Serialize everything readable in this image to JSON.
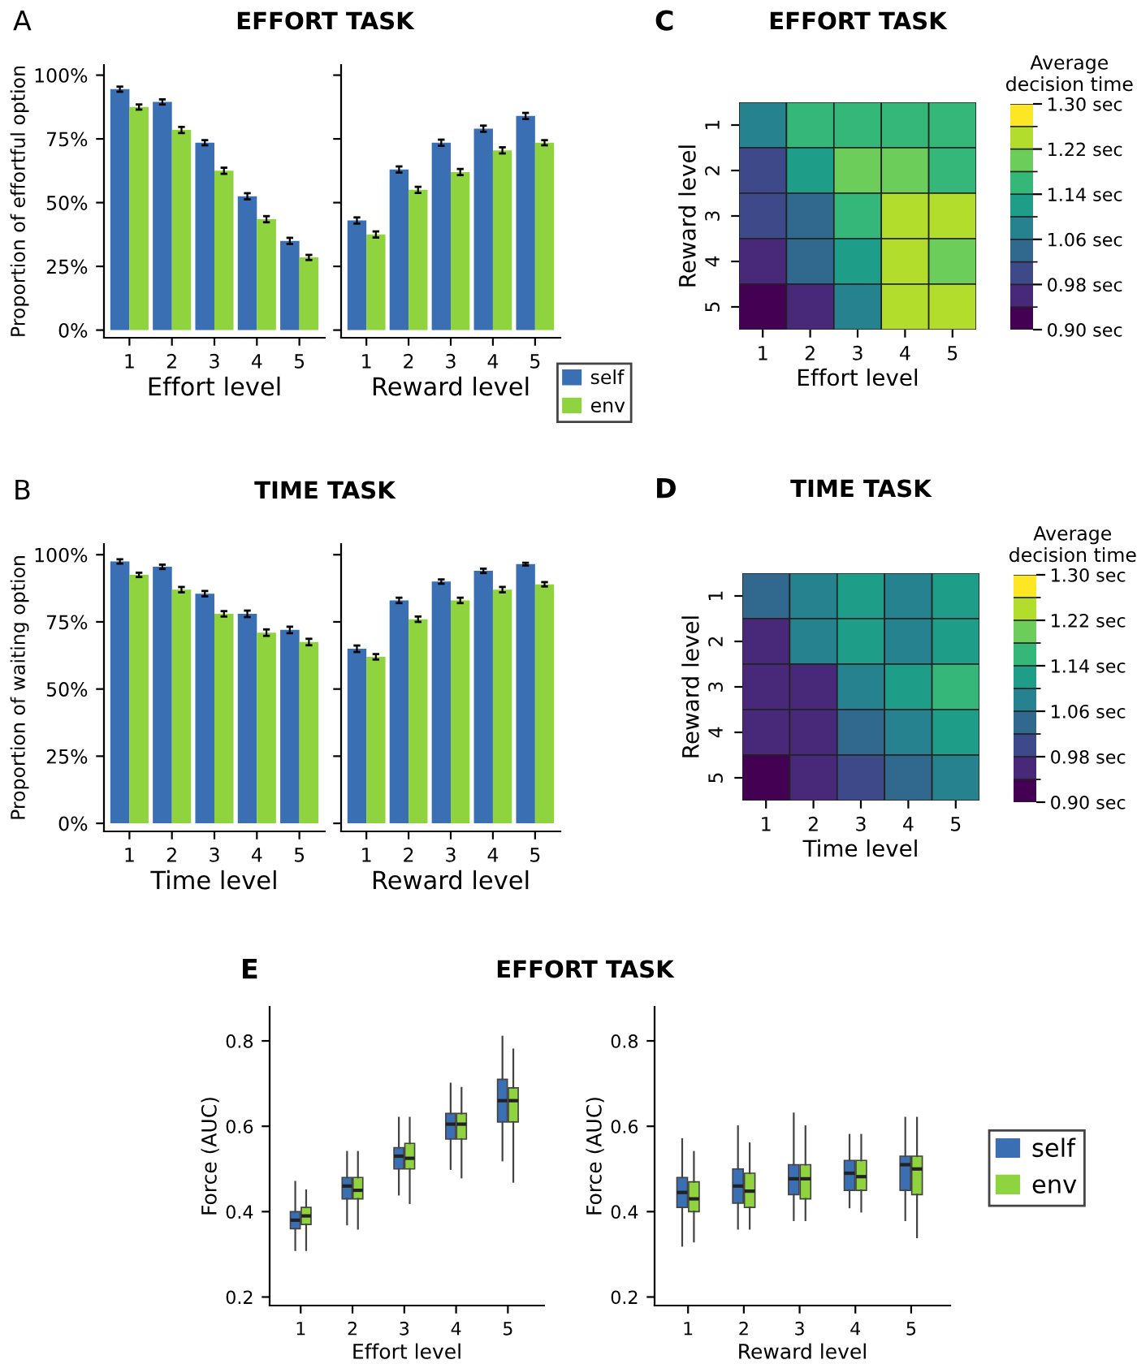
{
  "chart_data": [
    {
      "type": "bar",
      "title": "EFFORT TASK",
      "annotations": [
        "A"
      ],
      "legend": "bottom right",
      "ylabel": "Proportion of effortful option",
      "xlabel": "Effort level",
      "categories": [
        "1",
        "2",
        "3",
        "4",
        "5"
      ],
      "ylim": [
        -3,
        104
      ],
      "yticks": [
        {
          "value": 0,
          "label": "0%"
        },
        {
          "value": 25,
          "label": "25%"
        },
        {
          "value": 50,
          "label": "50%"
        },
        {
          "value": 75,
          "label": "75%"
        },
        {
          "value": 100,
          "label": "100%"
        }
      ],
      "series": [
        {
          "name": "self",
          "color": "#3b6fb4",
          "values": [
            94.5,
            89.5,
            73.5,
            52.5,
            35
          ],
          "errors": [
            1,
            1,
            1,
            1.2,
            1.2
          ]
        },
        {
          "name": "env",
          "color": "#8fd43f",
          "values": [
            87.5,
            78.5,
            62.5,
            43.5,
            28.5
          ],
          "errors": [
            1,
            1.2,
            1.2,
            1.2,
            1
          ]
        }
      ]
    },
    {
      "type": "bar",
      "xlabel": "Reward level",
      "categories": [
        "1",
        "2",
        "3",
        "4",
        "5"
      ],
      "ylim": [
        -3,
        104
      ],
      "yticks": [
        {
          "value": 0,
          "label": null
        },
        {
          "value": 25,
          "label": null
        },
        {
          "value": 50,
          "label": null
        },
        {
          "value": 75,
          "label": null
        },
        {
          "value": 100,
          "label": null
        }
      ],
      "tick_labels": "x",
      "legend": "bottom right",
      "series": [
        {
          "name": "self",
          "color": "#3b6fb4",
          "values": [
            43,
            63,
            73.5,
            79,
            84
          ],
          "errors": [
            1.2,
            1.2,
            1.2,
            1.2,
            1.2
          ]
        },
        {
          "name": "env",
          "color": "#8fd43f",
          "values": [
            37.5,
            55,
            62,
            70.5,
            73.5
          ],
          "errors": [
            1.2,
            1.2,
            1.2,
            1.2,
            1
          ]
        }
      ]
    },
    {
      "type": "bar",
      "title": "TIME TASK",
      "annotations": [
        "B"
      ],
      "legend": "top right",
      "ylabel": "Proportion of waiting option",
      "xlabel": "Time level",
      "categories": [
        "1",
        "2",
        "3",
        "4",
        "5"
      ],
      "ylim": [
        -3,
        104
      ],
      "yticks": [
        {
          "value": 0,
          "label": "0%"
        },
        {
          "value": 25,
          "label": "25%"
        },
        {
          "value": 50,
          "label": "50%"
        },
        {
          "value": 75,
          "label": "75%"
        },
        {
          "value": 100,
          "label": "100%"
        }
      ],
      "series": [
        {
          "name": "self",
          "color": "#3b6fb4",
          "values": [
            97.5,
            95.5,
            85.5,
            78,
            72
          ],
          "errors": [
            0.8,
            0.8,
            1,
            1.2,
            1.2
          ]
        },
        {
          "name": "env",
          "color": "#8fd43f",
          "values": [
            92.5,
            87,
            78,
            71,
            67.5
          ],
          "errors": [
            0.8,
            1,
            1,
            1.2,
            1.2
          ]
        }
      ]
    },
    {
      "type": "bar",
      "xlabel": "Reward level",
      "categories": [
        "1",
        "2",
        "3",
        "4",
        "5"
      ],
      "ylim": [
        -3,
        104
      ],
      "yticks": [
        {
          "value": 0,
          "label": null
        },
        {
          "value": 25,
          "label": null
        },
        {
          "value": 50,
          "label": null
        },
        {
          "value": 75,
          "label": null
        },
        {
          "value": 100,
          "label": null
        }
      ],
      "tick_labels": "x",
      "legend": "top right",
      "series": [
        {
          "name": "self",
          "color": "#3b6fb4",
          "values": [
            65,
            83,
            90,
            94,
            96.5
          ],
          "errors": [
            1.2,
            1,
            0.8,
            0.8,
            0.5
          ]
        },
        {
          "name": "env",
          "color": "#8fd43f",
          "values": [
            62,
            76,
            83,
            87,
            89
          ],
          "errors": [
            1,
            1,
            1,
            1,
            0.8
          ]
        }
      ]
    },
    {
      "type": "heatmap",
      "title": "EFFORT TASK",
      "annotations": [
        "C"
      ],
      "xlabel": "Effort level",
      "ylabel": "Reward level",
      "clabel": "Average decision time",
      "categories": [
        "1",
        "2",
        "3",
        "4",
        "5"
      ],
      "y_categories": [
        "1",
        "2",
        "3",
        "4",
        "5"
      ],
      "clim": [
        0.9,
        1.3
      ],
      "cticks": [
        {
          "value": 0.9,
          "label": "0.90 sec"
        },
        {
          "value": 0.98,
          "label": "0.98 sec"
        },
        {
          "value": 1.06,
          "label": "1.06 sec"
        },
        {
          "value": 1.14,
          "label": "1.14 sec"
        },
        {
          "value": 1.22,
          "label": "1.22 sec"
        },
        {
          "value": 1.3,
          "label": "1.30 sec"
        }
      ],
      "cells": [
        [
          1.08,
          1.16,
          1.16,
          1.16,
          1.16
        ],
        [
          1.0,
          1.12,
          1.2,
          1.2,
          1.16
        ],
        [
          1.0,
          1.04,
          1.16,
          1.24,
          1.24
        ],
        [
          0.96,
          1.04,
          1.12,
          1.24,
          1.2
        ],
        [
          0.92,
          0.96,
          1.08,
          1.24,
          1.24
        ]
      ]
    },
    {
      "type": "heatmap",
      "title": "TIME TASK",
      "annotations": [
        "D"
      ],
      "xlabel": "Time level",
      "ylabel": "Reward level",
      "clabel": "Average decision time",
      "categories": [
        "1",
        "2",
        "3",
        "4",
        "5"
      ],
      "y_categories": [
        "1",
        "2",
        "3",
        "4",
        "5"
      ],
      "clim": [
        0.9,
        1.3
      ],
      "cticks": [
        {
          "value": 0.9,
          "label": "0.90 sec"
        },
        {
          "value": 0.98,
          "label": "0.98 sec"
        },
        {
          "value": 1.06,
          "label": "1.06 sec"
        },
        {
          "value": 1.14,
          "label": "1.14 sec"
        },
        {
          "value": 1.22,
          "label": "1.22 sec"
        },
        {
          "value": 1.3,
          "label": "1.30 sec"
        }
      ],
      "cells": [
        [
          1.04,
          1.08,
          1.12,
          1.08,
          1.12
        ],
        [
          0.96,
          1.08,
          1.12,
          1.08,
          1.12
        ],
        [
          0.96,
          0.96,
          1.08,
          1.12,
          1.16
        ],
        [
          0.96,
          0.96,
          1.04,
          1.08,
          1.12
        ],
        [
          0.92,
          0.96,
          1.0,
          1.04,
          1.08
        ]
      ]
    },
    {
      "type": "box",
      "title": "EFFORT TASK",
      "annotations": [
        "E"
      ],
      "legend": "right",
      "ylabel": "Force (AUC)",
      "xlabel": "Effort level",
      "categories": [
        "1",
        "2",
        "3",
        "4",
        "5"
      ],
      "ylim": [
        0.18,
        0.88
      ],
      "yticks": [
        0.2,
        0.4,
        0.6,
        0.8
      ],
      "series": [
        {
          "name": "self",
          "color": "#3b6fb4",
          "boxes": [
            {
              "low": 0.31,
              "q1": 0.36,
              "median": 0.38,
              "q3": 0.4,
              "high": 0.47
            },
            {
              "low": 0.37,
              "q1": 0.43,
              "median": 0.46,
              "q3": 0.48,
              "high": 0.54
            },
            {
              "low": 0.44,
              "q1": 0.5,
              "median": 0.53,
              "q3": 0.55,
              "high": 0.62
            },
            {
              "low": 0.5,
              "q1": 0.57,
              "median": 0.605,
              "q3": 0.63,
              "high": 0.7
            },
            {
              "low": 0.52,
              "q1": 0.61,
              "median": 0.66,
              "q3": 0.71,
              "high": 0.81
            }
          ]
        },
        {
          "name": "env",
          "color": "#8fd43f",
          "boxes": [
            {
              "low": 0.31,
              "q1": 0.37,
              "median": 0.39,
              "q3": 0.41,
              "high": 0.45
            },
            {
              "low": 0.36,
              "q1": 0.43,
              "median": 0.45,
              "q3": 0.48,
              "high": 0.54
            },
            {
              "low": 0.42,
              "q1": 0.5,
              "median": 0.525,
              "q3": 0.56,
              "high": 0.62
            },
            {
              "low": 0.48,
              "q1": 0.57,
              "median": 0.605,
              "q3": 0.63,
              "high": 0.69
            },
            {
              "low": 0.47,
              "q1": 0.61,
              "median": 0.66,
              "q3": 0.69,
              "high": 0.78
            }
          ]
        }
      ]
    },
    {
      "type": "box",
      "ylabel": "Force (AUC)",
      "xlabel": "Reward level",
      "categories": [
        "1",
        "2",
        "3",
        "4",
        "5"
      ],
      "ylim": [
        0.18,
        0.88
      ],
      "yticks": [
        0.2,
        0.4,
        0.6,
        0.8
      ],
      "legend": "right",
      "series": [
        {
          "name": "self",
          "color": "#3b6fb4",
          "boxes": [
            {
              "low": 0.32,
              "q1": 0.41,
              "median": 0.445,
              "q3": 0.48,
              "high": 0.57
            },
            {
              "low": 0.36,
              "q1": 0.42,
              "median": 0.46,
              "q3": 0.5,
              "high": 0.6
            },
            {
              "low": 0.38,
              "q1": 0.44,
              "median": 0.477,
              "q3": 0.51,
              "high": 0.63
            },
            {
              "low": 0.41,
              "q1": 0.45,
              "median": 0.49,
              "q3": 0.52,
              "high": 0.58
            },
            {
              "low": 0.38,
              "q1": 0.45,
              "median": 0.51,
              "q3": 0.53,
              "high": 0.62
            }
          ]
        },
        {
          "name": "env",
          "color": "#8fd43f",
          "boxes": [
            {
              "low": 0.33,
              "q1": 0.4,
              "median": 0.43,
              "q3": 0.47,
              "high": 0.54
            },
            {
              "low": 0.36,
              "q1": 0.41,
              "median": 0.448,
              "q3": 0.49,
              "high": 0.56
            },
            {
              "low": 0.38,
              "q1": 0.43,
              "median": 0.477,
              "q3": 0.51,
              "high": 0.6
            },
            {
              "low": 0.4,
              "q1": 0.45,
              "median": 0.482,
              "q3": 0.52,
              "high": 0.58
            },
            {
              "low": 0.34,
              "q1": 0.44,
              "median": 0.5,
              "q3": 0.53,
              "high": 0.62
            }
          ]
        }
      ]
    }
  ]
}
